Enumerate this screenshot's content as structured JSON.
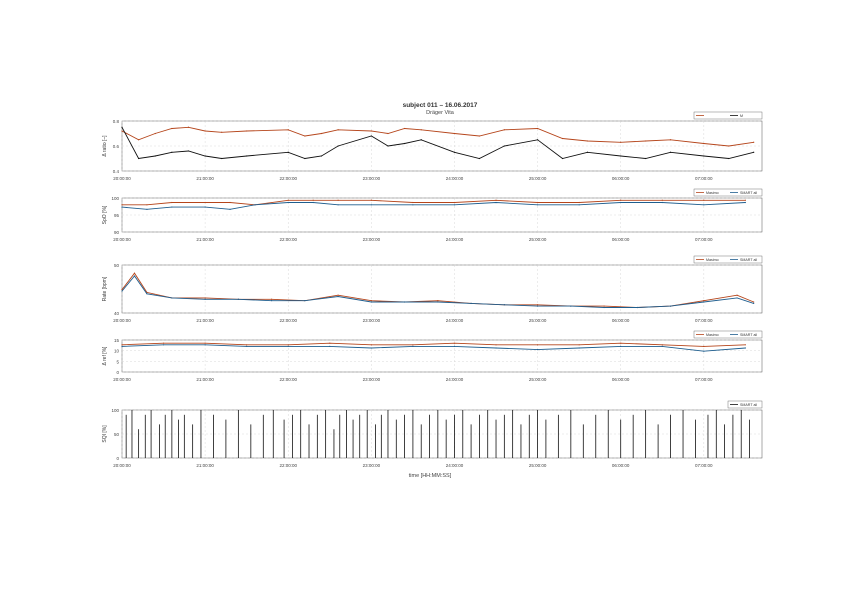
{
  "figure": {
    "title": "subject 011 – 16.06.2017",
    "subtitle": "Dräger Vita",
    "xlabel": "time [HH:MM:SS]"
  },
  "colors": {
    "orange": "#b5451b",
    "blue": "#1f5e8e",
    "black": "#111111",
    "grid": "#cfcfcf"
  },
  "chart_data": [
    {
      "type": "line",
      "panel": "top",
      "ylabel": "Δ ratio [–]",
      "ylim": [
        0.4,
        0.8
      ],
      "yticks": [
        "0.8",
        "0.6",
        "0.4"
      ],
      "xticks": [
        "20:00:00",
        "21:00:00",
        "22:00:00",
        "23:00:00",
        "24:00:00",
        "25:00:00",
        "06:00:00",
        "07:00:00"
      ],
      "legend": [
        "",
        "M"
      ],
      "series": [
        {
          "name": "",
          "color": "orange",
          "x": [
            0,
            0.2,
            0.4,
            0.6,
            0.8,
            1.0,
            1.2,
            1.5,
            2.0,
            2.2,
            2.4,
            2.6,
            3.0,
            3.2,
            3.4,
            3.6,
            4.0,
            4.3,
            4.6,
            5.0,
            5.3,
            5.6,
            6.0,
            6.3,
            6.6,
            7.0,
            7.3,
            7.6
          ],
          "values": [
            0.72,
            0.65,
            0.7,
            0.74,
            0.75,
            0.72,
            0.71,
            0.72,
            0.73,
            0.68,
            0.7,
            0.73,
            0.72,
            0.7,
            0.74,
            0.73,
            0.7,
            0.68,
            0.73,
            0.74,
            0.66,
            0.64,
            0.63,
            0.64,
            0.65,
            0.62,
            0.6,
            0.63
          ]
        },
        {
          "name": "",
          "color": "black",
          "x": [
            0,
            0.2,
            0.4,
            0.6,
            0.8,
            1.0,
            1.2,
            1.5,
            2.0,
            2.2,
            2.4,
            2.6,
            3.0,
            3.2,
            3.4,
            3.6,
            4.0,
            4.3,
            4.6,
            5.0,
            5.3,
            5.6,
            6.0,
            6.3,
            6.6,
            7.0,
            7.3,
            7.6
          ],
          "values": [
            0.75,
            0.5,
            0.52,
            0.55,
            0.56,
            0.52,
            0.5,
            0.52,
            0.55,
            0.5,
            0.52,
            0.6,
            0.68,
            0.6,
            0.62,
            0.65,
            0.55,
            0.5,
            0.6,
            0.65,
            0.5,
            0.55,
            0.52,
            0.5,
            0.55,
            0.52,
            0.5,
            0.55
          ]
        }
      ]
    },
    {
      "type": "line",
      "panel": "spo2",
      "ylabel": "SpO [%]",
      "ylim": [
        85,
        100
      ],
      "yticks": [
        "100",
        "95",
        "90"
      ],
      "xticks": [
        "20:00:00",
        "21:00:00",
        "22:00:00",
        "23:00:00",
        "24:00:00",
        "25:00:00",
        "06:00:00",
        "07:00:00"
      ],
      "legend": [
        "Masimo",
        "SMART all"
      ],
      "series": [
        {
          "name": "Masimo",
          "color": "orange",
          "x": [
            0,
            0.3,
            0.6,
            1.0,
            1.3,
            1.6,
            2.0,
            2.3,
            2.6,
            3.0,
            3.5,
            4.0,
            4.5,
            5.0,
            5.5,
            6.0,
            6.5,
            7.0,
            7.5
          ],
          "values": [
            97,
            97,
            98,
            98,
            98,
            97,
            99,
            99,
            99,
            99,
            98,
            98,
            99,
            98,
            98,
            99,
            99,
            99,
            99
          ]
        },
        {
          "name": "SMART all",
          "color": "blue",
          "x": [
            0,
            0.3,
            0.6,
            1.0,
            1.3,
            1.6,
            2.0,
            2.3,
            2.6,
            3.0,
            3.5,
            4.0,
            4.5,
            5.0,
            5.5,
            6.0,
            6.5,
            7.0,
            7.5
          ],
          "values": [
            96,
            95,
            96,
            96,
            95,
            97,
            98,
            98,
            97,
            97,
            97,
            97,
            98,
            97,
            97,
            98,
            98,
            97,
            98
          ]
        }
      ]
    },
    {
      "type": "line",
      "panel": "rate",
      "ylabel": "Rate [bpm]",
      "ylim": [
        35,
        70
      ],
      "yticks": [
        "50",
        "40"
      ],
      "xticks": [
        "20:00:00",
        "21:00:00",
        "22:00:00",
        "23:00:00",
        "24:00:00",
        "25:00:00",
        "06:00:00",
        "07:00:00"
      ],
      "legend": [
        "Masimo",
        "SMART all"
      ],
      "series": [
        {
          "name": "Masimo",
          "color": "orange",
          "x": [
            0,
            0.15,
            0.3,
            0.6,
            1.0,
            1.4,
            1.8,
            2.2,
            2.6,
            3.0,
            3.4,
            3.8,
            4.2,
            4.6,
            5.0,
            5.4,
            5.8,
            6.2,
            6.6,
            7.0,
            7.4,
            7.6
          ],
          "values": [
            52,
            64,
            50,
            46,
            46,
            45,
            45,
            44,
            48,
            44,
            43,
            44,
            42,
            41,
            41,
            40,
            40,
            39,
            40,
            44,
            48,
            43
          ]
        },
        {
          "name": "SMART all",
          "color": "blue",
          "x": [
            0,
            0.15,
            0.3,
            0.6,
            1.0,
            1.4,
            1.8,
            2.2,
            2.6,
            3.0,
            3.4,
            3.8,
            4.2,
            4.6,
            5.0,
            5.4,
            5.8,
            6.2,
            6.6,
            7.0,
            7.4,
            7.6
          ],
          "values": [
            51,
            62,
            49,
            46,
            45,
            45,
            44,
            44,
            47,
            43,
            43,
            43,
            42,
            41,
            40,
            40,
            39,
            39,
            40,
            43,
            46,
            42
          ]
        }
      ]
    },
    {
      "type": "line",
      "panel": "depth",
      "ylabel": "Δ ref [%]",
      "ylim": [
        -5,
        15
      ],
      "yticks": [
        "15",
        "10",
        "5",
        "0"
      ],
      "xticks": [
        "20:00:00",
        "21:00:00",
        "22:00:00",
        "23:00:00",
        "24:00:00",
        "25:00:00",
        "06:00:00",
        "07:00:00"
      ],
      "legend": [
        "Masimo",
        "SMART all"
      ],
      "series": [
        {
          "name": "Masimo",
          "color": "orange",
          "x": [
            0,
            0.5,
            1.0,
            1.5,
            2.0,
            2.5,
            3.0,
            3.5,
            4.0,
            4.5,
            5.0,
            5.5,
            6.0,
            6.5,
            7.0,
            7.5
          ],
          "values": [
            12,
            13,
            13,
            12,
            12,
            13,
            12,
            12,
            13,
            12,
            12,
            12,
            13,
            12,
            11,
            12
          ]
        },
        {
          "name": "SMART all",
          "color": "blue",
          "x": [
            0,
            0.5,
            1.0,
            1.5,
            2.0,
            2.5,
            3.0,
            3.5,
            4.0,
            4.5,
            5.0,
            5.5,
            6.0,
            6.5,
            7.0,
            7.5
          ],
          "values": [
            11,
            12,
            12,
            11,
            11,
            11,
            10,
            11,
            11,
            10,
            9,
            10,
            11,
            11,
            8,
            10
          ]
        }
      ]
    },
    {
      "type": "bar",
      "panel": "events",
      "ylabel": "SQI [%]",
      "ylim": [
        0,
        100
      ],
      "yticks": [
        "100",
        "50",
        "0"
      ],
      "xticks": [
        "20:00:00",
        "21:00:00",
        "22:00:00",
        "23:00:00",
        "24:00:00",
        "25:00:00",
        "06:00:00",
        "07:00:00"
      ],
      "legend": [
        "SMART all"
      ],
      "series": [
        {
          "name": "SMART all",
          "color": "black",
          "x": [
            0.05,
            0.12,
            0.2,
            0.28,
            0.35,
            0.45,
            0.52,
            0.6,
            0.68,
            0.75,
            0.85,
            0.95,
            1.1,
            1.25,
            1.4,
            1.55,
            1.7,
            1.82,
            1.95,
            2.05,
            2.15,
            2.25,
            2.35,
            2.45,
            2.55,
            2.62,
            2.7,
            2.78,
            2.86,
            2.95,
            3.05,
            3.12,
            3.2,
            3.3,
            3.4,
            3.5,
            3.6,
            3.7,
            3.8,
            3.9,
            4.0,
            4.1,
            4.2,
            4.3,
            4.4,
            4.5,
            4.6,
            4.7,
            4.8,
            4.9,
            5.0,
            5.1,
            5.25,
            5.4,
            5.55,
            5.7,
            5.85,
            6.0,
            6.15,
            6.3,
            6.45,
            6.6,
            6.75,
            6.9,
            7.05,
            7.15,
            7.25,
            7.35,
            7.45,
            7.55
          ],
          "values": [
            90,
            100,
            60,
            90,
            100,
            70,
            90,
            100,
            80,
            90,
            70,
            100,
            90,
            80,
            100,
            70,
            90,
            100,
            80,
            90,
            100,
            70,
            90,
            100,
            60,
            90,
            100,
            80,
            90,
            100,
            70,
            90,
            100,
            80,
            90,
            100,
            70,
            90,
            100,
            80,
            90,
            100,
            70,
            90,
            100,
            80,
            90,
            100,
            70,
            90,
            100,
            80,
            90,
            100,
            70,
            90,
            100,
            80,
            90,
            100,
            70,
            90,
            100,
            80,
            90,
            100,
            70,
            90,
            100,
            80
          ]
        }
      ]
    }
  ]
}
